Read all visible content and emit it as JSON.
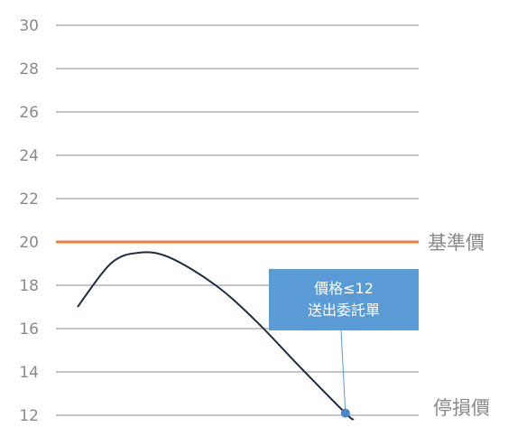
{
  "chart_data": {
    "type": "line",
    "y_ticks": [
      "30",
      "28",
      "26",
      "24",
      "22",
      "20",
      "18",
      "16",
      "14",
      "12"
    ],
    "ylim": [
      12,
      30
    ],
    "grid": true,
    "reference_line": {
      "label": "基準價",
      "value": 20,
      "color": "#ED7D31"
    },
    "stop_loss": {
      "label": "停損價",
      "value": 12
    },
    "series": [
      {
        "color": "#1F2A44",
        "points": [
          {
            "t": 0.0,
            "y": 17.0
          },
          {
            "t": 0.12,
            "y": 19.0
          },
          {
            "t": 0.22,
            "y": 19.5
          },
          {
            "t": 0.33,
            "y": 19.3
          },
          {
            "t": 0.5,
            "y": 18.0
          },
          {
            "t": 0.65,
            "y": 16.3
          },
          {
            "t": 0.8,
            "y": 14.3
          },
          {
            "t": 0.97,
            "y": 12.1
          },
          {
            "t": 1.0,
            "y": 11.8
          }
        ]
      }
    ],
    "callout": {
      "lines": [
        "價格≤12",
        "送出委託單"
      ],
      "target_t": 0.97,
      "target_y": 12.1,
      "box_color": "#5B9BD5",
      "marker_color": "#4A86C8"
    }
  }
}
